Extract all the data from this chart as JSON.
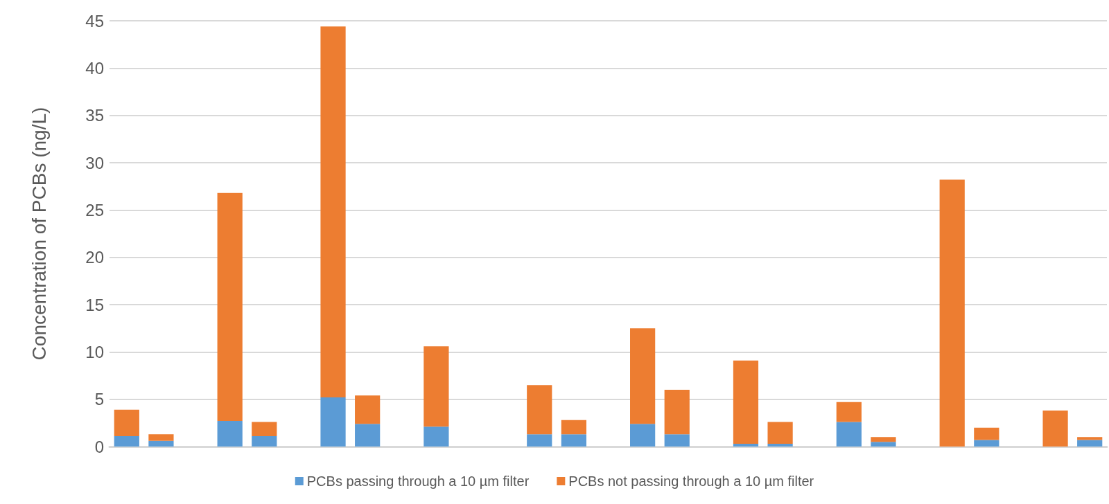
{
  "chart_data": {
    "type": "bar",
    "stacked": true,
    "ylabel": "Concentration of PCBs (ng/L)",
    "categories": [
      null,
      null,
      null,
      null,
      null,
      null,
      null,
      null,
      null,
      null,
      null,
      null,
      null,
      null,
      null,
      null,
      null,
      null,
      null,
      null,
      null,
      null,
      null,
      null,
      null,
      null,
      null,
      null,
      null
    ],
    "series": [
      {
        "name": "PCBs passing through a 10 µm filter",
        "color": "#5b9bd5",
        "values": [
          1.1,
          0.6,
          null,
          2.7,
          1.1,
          null,
          5.2,
          2.4,
          null,
          2.1,
          null,
          null,
          1.3,
          1.3,
          null,
          2.4,
          1.3,
          null,
          0.3,
          0.3,
          null,
          2.6,
          0.5,
          null,
          0,
          0.7,
          null,
          0,
          0.7
        ]
      },
      {
        "name": "PCBs not passing through a 10 µm filter",
        "color": "#ed7d31",
        "values": [
          2.8,
          0.7,
          null,
          24.1,
          1.5,
          null,
          39.2,
          3.0,
          null,
          8.5,
          null,
          null,
          5.2,
          1.5,
          null,
          10.1,
          4.7,
          null,
          8.8,
          2.3,
          null,
          2.1,
          0.5,
          null,
          28.2,
          1.3,
          null,
          3.8,
          0.3
        ]
      }
    ],
    "ylim": [
      0,
      45
    ],
    "yticks": [
      0,
      5,
      10,
      15,
      20,
      25,
      30,
      35,
      40,
      45
    ],
    "grid": "y",
    "legend": "bottom"
  }
}
